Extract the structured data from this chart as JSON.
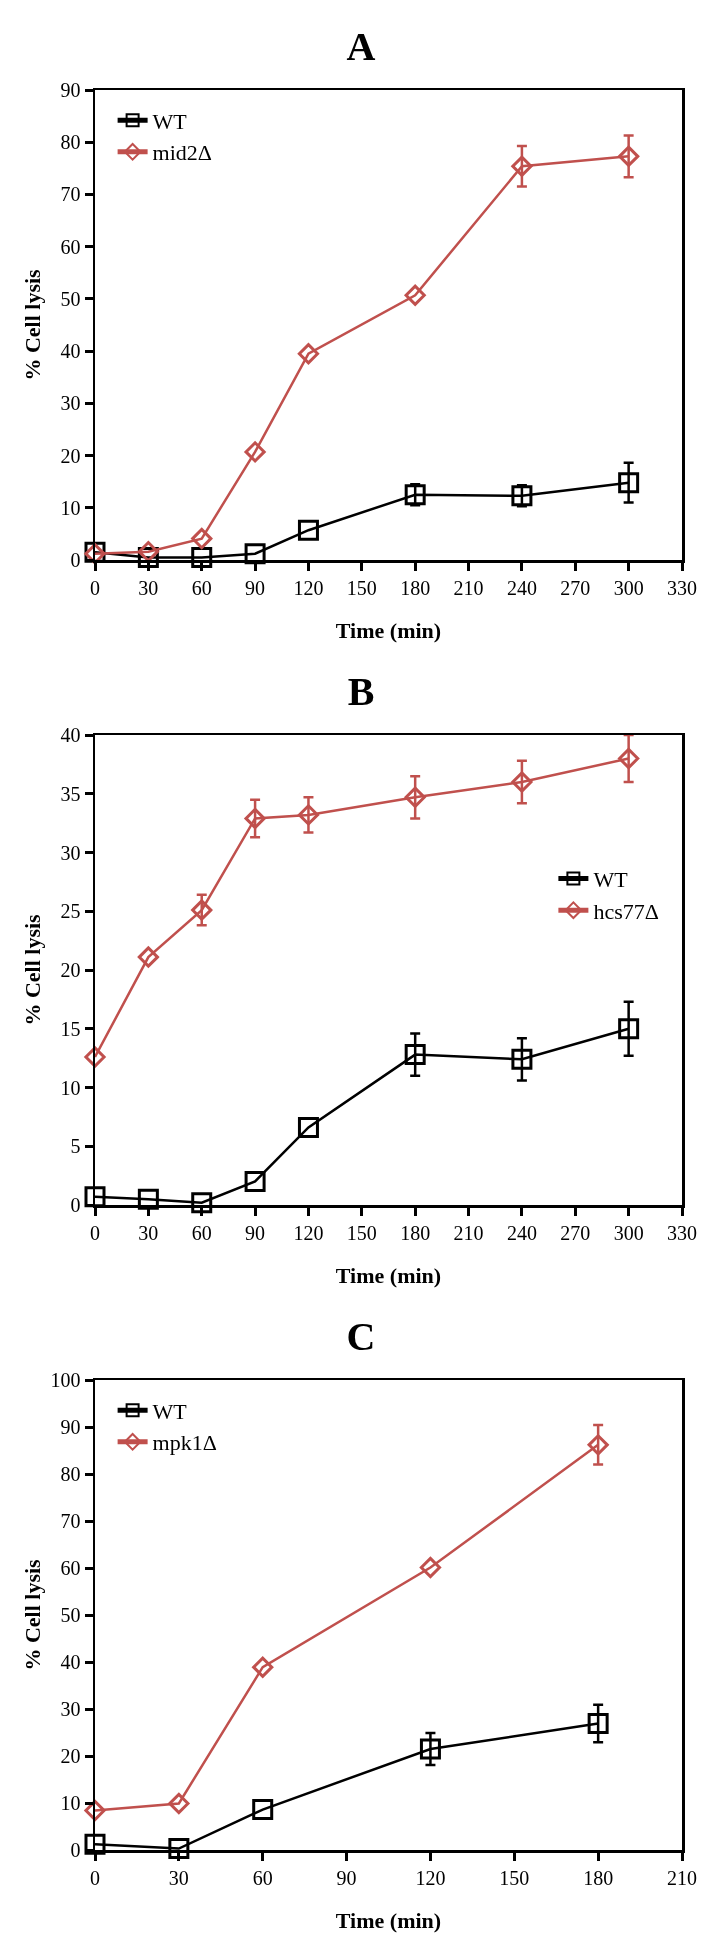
{
  "chart_data": [
    {
      "type": "line",
      "title": "A",
      "xlabel": "Time (min)",
      "ylabel": "% Cell lysis",
      "x": [
        0,
        30,
        60,
        90,
        120,
        180,
        240,
        300
      ],
      "xlim": [
        0,
        330
      ],
      "xticks": [
        0,
        30,
        60,
        90,
        120,
        150,
        180,
        210,
        240,
        270,
        300,
        330
      ],
      "ylim": [
        0,
        90
      ],
      "yticks": [
        0,
        10,
        20,
        30,
        40,
        50,
        60,
        70,
        80,
        90
      ],
      "grid": false,
      "legend": "top left",
      "line_style": "solid",
      "series": [
        {
          "name": "WT",
          "color": "#000000",
          "marker": "square",
          "values": [
            1.5,
            0.5,
            0.5,
            1.2,
            5.7,
            12.5,
            12.3,
            14.8
          ],
          "errors": [
            null,
            null,
            null,
            null,
            null,
            2,
            2,
            3.8
          ]
        },
        {
          "name": "mid2Δ",
          "color": "#c0504d",
          "marker": "diamond",
          "values": [
            1.2,
            1.6,
            4.1,
            20.7,
            39.5,
            50.7,
            75.4,
            77.3
          ],
          "errors": [
            null,
            null,
            null,
            null,
            null,
            null,
            3.9,
            4
          ]
        }
      ]
    },
    {
      "type": "line",
      "title": "B",
      "xlabel": "Time (min)",
      "ylabel": "% Cell lysis",
      "x": [
        0,
        30,
        60,
        90,
        120,
        180,
        240,
        300
      ],
      "xlim": [
        0,
        330
      ],
      "xticks": [
        0,
        30,
        60,
        90,
        120,
        150,
        180,
        210,
        240,
        270,
        300,
        330
      ],
      "ylim": [
        0,
        40
      ],
      "yticks": [
        0,
        5,
        10,
        15,
        20,
        25,
        30,
        35,
        40
      ],
      "grid": false,
      "legend": "right",
      "line_style": "solid",
      "series": [
        {
          "name": "WT",
          "color": "#000000",
          "marker": "square",
          "values": [
            0.7,
            0.5,
            0.2,
            2.0,
            6.6,
            12.8,
            12.4,
            15.0
          ],
          "errors": [
            null,
            null,
            null,
            null,
            null,
            1.8,
            1.8,
            2.3
          ]
        },
        {
          "name": "hcs77Δ",
          "color": "#c0504d",
          "marker": "diamond",
          "values": [
            12.6,
            21.1,
            25.1,
            32.9,
            33.2,
            34.7,
            36.0,
            38.0
          ],
          "errors": [
            null,
            null,
            1.3,
            1.6,
            1.5,
            1.8,
            1.8,
            2.0
          ]
        }
      ]
    },
    {
      "type": "line",
      "title": "C",
      "xlabel": "Time (min)",
      "ylabel": "% Cell lysis",
      "x": [
        0,
        30,
        60,
        120,
        180
      ],
      "xlim": [
        0,
        210
      ],
      "xticks": [
        0,
        30,
        60,
        90,
        120,
        150,
        180,
        210
      ],
      "ylim": [
        0,
        100
      ],
      "yticks": [
        0,
        10,
        20,
        30,
        40,
        50,
        60,
        70,
        80,
        90,
        100
      ],
      "grid": false,
      "legend": "top left",
      "line_style": "solid",
      "series": [
        {
          "name": "WT",
          "color": "#000000",
          "marker": "square",
          "values": [
            1.2,
            0.3,
            8.6,
            21.5,
            26.9
          ],
          "errors": [
            null,
            null,
            null,
            3.4,
            4
          ]
        },
        {
          "name": "mpk1Δ",
          "color": "#c0504d",
          "marker": "diamond",
          "values": [
            8.4,
            9.9,
            38.9,
            60.1,
            86.2
          ],
          "errors": [
            null,
            null,
            null,
            null,
            4.2
          ]
        }
      ]
    }
  ]
}
